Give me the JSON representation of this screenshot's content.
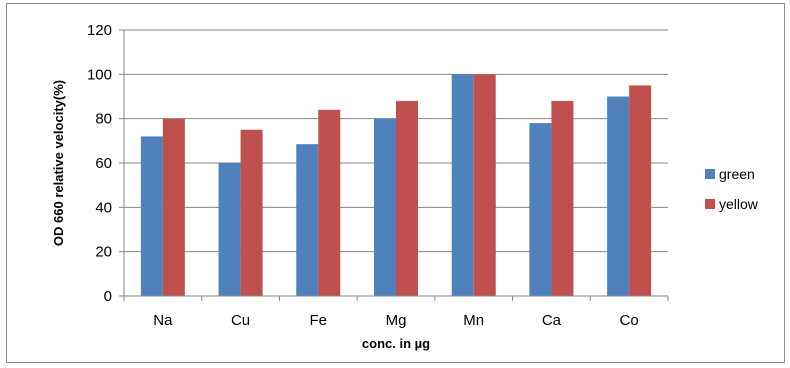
{
  "chart_data": {
    "type": "bar",
    "title": "",
    "xlabel": "conc. in µg",
    "ylabel": "OD 660 relative velocity(%)",
    "categories": [
      "Na",
      "Cu",
      "Fe",
      "Mg",
      "Mn",
      "Ca",
      "Co"
    ],
    "series": [
      {
        "name": "green",
        "color": "#4f81bd",
        "values": [
          72,
          60,
          68.5,
          80,
          100,
          78,
          90
        ]
      },
      {
        "name": "yellow",
        "color": "#c0504d",
        "values": [
          80,
          75,
          84,
          88,
          100,
          88,
          95
        ]
      }
    ],
    "ylim": [
      0,
      120
    ],
    "yticks": [
      "0",
      "20",
      "40",
      "60",
      "80",
      "100",
      "120"
    ],
    "grid": true,
    "legend": "right"
  }
}
